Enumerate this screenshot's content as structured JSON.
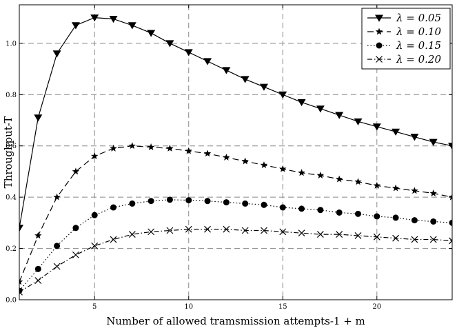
{
  "chart_data": {
    "type": "line",
    "xlabel": "Number of allowed tramsmission attempts-1 + m",
    "ylabel": "Throughput-T",
    "xlim": [
      1,
      24
    ],
    "ylim": [
      0.0,
      1.15
    ],
    "xticks": [
      5,
      10,
      15,
      20
    ],
    "xtick_labels": [
      "5",
      "10",
      "15",
      "20"
    ],
    "yticks": [
      0.0,
      0.2,
      0.4,
      0.6,
      0.8,
      1.0
    ],
    "ytick_labels": [
      "0.0",
      "0.2",
      "0.4",
      "0.6",
      "0.8",
      "1.0"
    ],
    "grid": true,
    "legend_position": "top-right",
    "x": [
      1,
      2,
      3,
      4,
      5,
      6,
      7,
      8,
      9,
      10,
      11,
      12,
      13,
      14,
      15,
      16,
      17,
      18,
      19,
      20,
      21,
      22,
      23,
      24
    ],
    "series": [
      {
        "name": "λ = 0.05",
        "marker": "triangle-down",
        "line_style": "solid",
        "values": [
          0.28,
          0.71,
          0.96,
          1.07,
          1.1,
          1.095,
          1.07,
          1.04,
          1.0,
          0.965,
          0.93,
          0.895,
          0.86,
          0.83,
          0.8,
          0.77,
          0.745,
          0.72,
          0.695,
          0.675,
          0.655,
          0.635,
          0.615,
          0.6
        ]
      },
      {
        "name": "λ = 0.10",
        "marker": "star",
        "line_style": "dashed",
        "values": [
          0.07,
          0.25,
          0.4,
          0.5,
          0.56,
          0.59,
          0.6,
          0.595,
          0.59,
          0.58,
          0.57,
          0.555,
          0.54,
          0.525,
          0.51,
          0.495,
          0.485,
          0.47,
          0.46,
          0.445,
          0.435,
          0.425,
          0.415,
          0.4
        ]
      },
      {
        "name": "λ = 0.15",
        "marker": "circle",
        "line_style": "dotted",
        "values": [
          0.035,
          0.12,
          0.21,
          0.28,
          0.33,
          0.36,
          0.375,
          0.385,
          0.39,
          0.388,
          0.385,
          0.38,
          0.375,
          0.37,
          0.36,
          0.355,
          0.35,
          0.34,
          0.335,
          0.325,
          0.32,
          0.31,
          0.305,
          0.3
        ]
      },
      {
        "name": "λ = 0.20",
        "marker": "x",
        "line_style": "dashdot",
        "values": [
          0.03,
          0.075,
          0.13,
          0.175,
          0.21,
          0.235,
          0.255,
          0.265,
          0.27,
          0.275,
          0.275,
          0.275,
          0.27,
          0.27,
          0.265,
          0.26,
          0.255,
          0.255,
          0.25,
          0.245,
          0.24,
          0.235,
          0.235,
          0.23
        ]
      }
    ]
  }
}
